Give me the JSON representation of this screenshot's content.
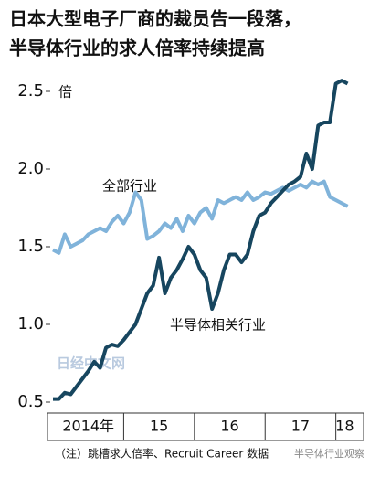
{
  "chart_data": {
    "type": "line",
    "title": [
      "日本大型电子厂商的裁员告一段落，",
      "半导体行业的求人倍率持续提高"
    ],
    "y_unit": "倍",
    "x": [
      0,
      1,
      2,
      3,
      4,
      5,
      6,
      7,
      8,
      9,
      10,
      11,
      12,
      13,
      14,
      15,
      16,
      17,
      18,
      19,
      20,
      21,
      22,
      23,
      24,
      25,
      26,
      27,
      28,
      29,
      30,
      31,
      32,
      33,
      34,
      35,
      36,
      37,
      38,
      39,
      40,
      41,
      42,
      43,
      44,
      45,
      46,
      47,
      48,
      49,
      50
    ],
    "xlim": [
      0,
      51
    ],
    "xticks": [
      {
        "value": 6,
        "label": "2014年"
      },
      {
        "value": 18,
        "label": "15"
      },
      {
        "value": 30,
        "label": "16"
      },
      {
        "value": 42,
        "label": "17"
      },
      {
        "value": 49.5,
        "label": "18"
      }
    ],
    "year_bounds": [
      12,
      24,
      36,
      48
    ],
    "ylim": [
      0.45,
      2.65
    ],
    "yticks": [
      2.5,
      {
        "value": 2,
        "label": "2.0"
      },
      1.5,
      {
        "value": 1,
        "label": "1.0"
      },
      0.5
    ],
    "series": [
      {
        "name": "全部行业",
        "color": "#80b3da",
        "values": [
          1.48,
          1.46,
          1.58,
          1.5,
          1.52,
          1.54,
          1.58,
          1.6,
          1.62,
          1.6,
          1.66,
          1.7,
          1.65,
          1.72,
          1.85,
          1.8,
          1.55,
          1.57,
          1.6,
          1.65,
          1.62,
          1.68,
          1.6,
          1.7,
          1.65,
          1.72,
          1.75,
          1.68,
          1.8,
          1.78,
          1.8,
          1.82,
          1.8,
          1.85,
          1.8,
          1.82,
          1.85,
          1.84,
          1.86,
          1.88,
          1.86,
          1.88,
          1.9,
          1.88,
          1.92,
          1.9,
          1.92,
          1.82,
          1.8,
          1.78,
          1.76
        ]
      },
      {
        "name": "半导体相关行业",
        "color": "#17465f",
        "values": [
          0.52,
          0.52,
          0.56,
          0.55,
          0.6,
          0.65,
          0.7,
          0.76,
          0.72,
          0.85,
          0.87,
          0.86,
          0.9,
          0.95,
          1.0,
          1.1,
          1.2,
          1.25,
          1.43,
          1.2,
          1.3,
          1.35,
          1.42,
          1.5,
          1.45,
          1.35,
          1.3,
          1.1,
          1.2,
          1.35,
          1.45,
          1.45,
          1.4,
          1.45,
          1.6,
          1.7,
          1.72,
          1.78,
          1.82,
          1.86,
          1.9,
          1.92,
          1.95,
          2.1,
          2.0,
          2.28,
          2.3,
          2.3,
          2.55,
          2.57,
          2.55
        ]
      }
    ],
    "label_positions": null,
    "watermarks": [
      "日经中文网",
      "半导体行业观察"
    ],
    "footnote": "（注）跳槽求人倍率、Recruit Career 数据"
  }
}
